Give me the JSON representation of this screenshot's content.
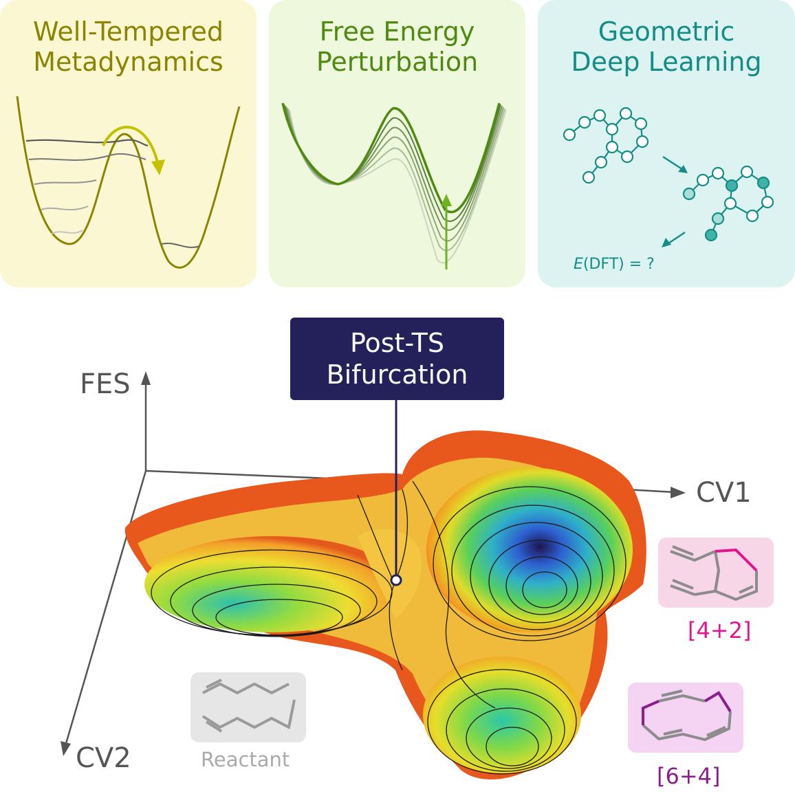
{
  "panels": [
    {
      "title_line1": "Well-Tempered",
      "title_line2": "Metadynamics"
    },
    {
      "title_line1": "Free Energy",
      "title_line2": "Perturbation"
    },
    {
      "title_line1": "Geometric",
      "title_line2": "Deep Learning",
      "equation_italic": "E",
      "equation_rest": "(DFT) = ?"
    }
  ],
  "callout": {
    "line1": "Post-TS",
    "line2": "Bifurcation"
  },
  "axes": {
    "z": "FES",
    "x": "CV1",
    "y": "CV2"
  },
  "molecules": {
    "reactant": "Reactant",
    "product_a": "[4+2]",
    "product_b": "[6+4]"
  },
  "colors": {
    "metadynamics": "#8a8400",
    "perturbation": "#4f8a10",
    "deep_learning": "#138d86",
    "callout_bg": "#24215a",
    "product_a": "#e3148c",
    "product_b": "#8a1e8a",
    "axis": "#555555"
  }
}
